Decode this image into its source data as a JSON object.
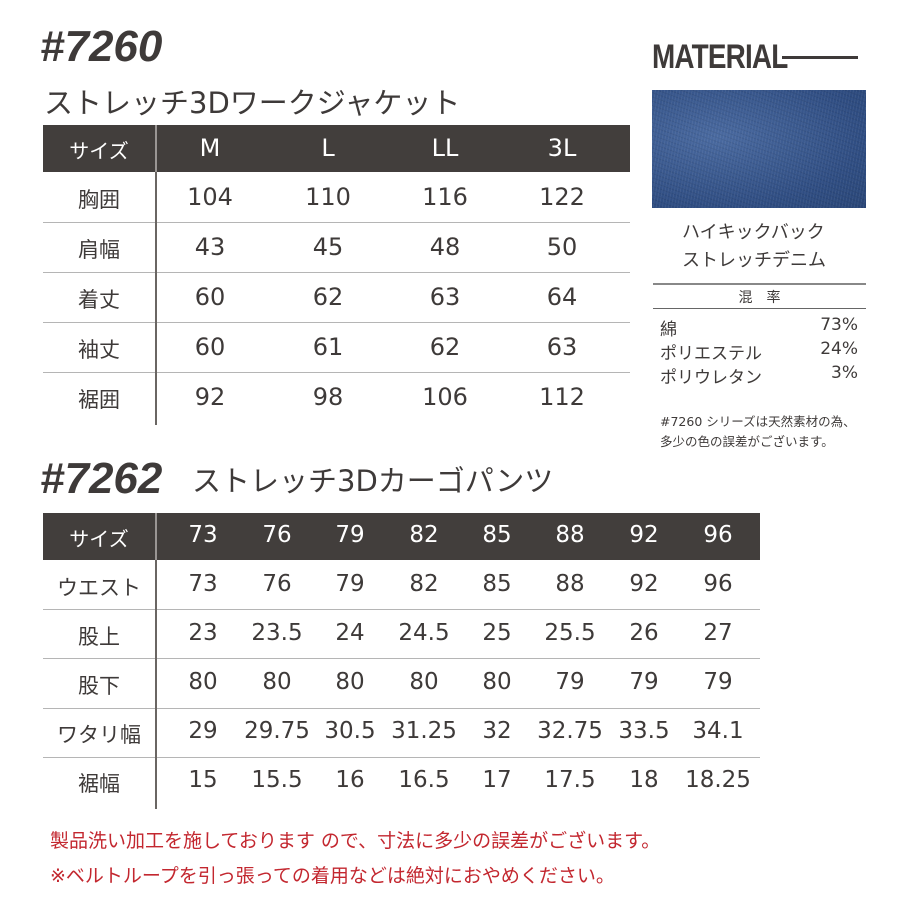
{
  "jacket": {
    "code": "#7260",
    "name": "ストレッチ3Dワークジャケット",
    "header_label": "サイズ",
    "sizes": [
      "M",
      "L",
      "LL",
      "3L"
    ],
    "rows": [
      {
        "label": "胸囲",
        "values": [
          "104",
          "110",
          "116",
          "122"
        ]
      },
      {
        "label": "肩幅",
        "values": [
          "43",
          "45",
          "48",
          "50"
        ]
      },
      {
        "label": "着丈",
        "values": [
          "60",
          "62",
          "63",
          "64"
        ]
      },
      {
        "label": "袖丈",
        "values": [
          "60",
          "61",
          "62",
          "63"
        ]
      },
      {
        "label": "裾囲",
        "values": [
          "92",
          "98",
          "106",
          "112"
        ]
      }
    ]
  },
  "material": {
    "title": "MATERIAL",
    "fabric_line1": "ハイキックバック",
    "fabric_line2": "ストレッチデニム",
    "blend_header": "混　率",
    "blend": [
      {
        "name": "綿",
        "pct": "73%"
      },
      {
        "name": "ポリエステル",
        "pct": "24%"
      },
      {
        "name": "ポリウレタン",
        "pct": "3%"
      }
    ],
    "note_line1": "#7260 シリーズは天然素材の為、",
    "note_line2": "多少の色の誤差がございます。",
    "swatch_color": "#35538a"
  },
  "pants": {
    "code": "#7262",
    "name": "ストレッチ3Dカーゴパンツ",
    "header_label": "サイズ",
    "sizes": [
      "73",
      "76",
      "79",
      "82",
      "85",
      "88",
      "92",
      "96"
    ],
    "rows": [
      {
        "label": "ウエスト",
        "values": [
          "73",
          "76",
          "79",
          "82",
          "85",
          "88",
          "92",
          "96"
        ]
      },
      {
        "label": "股上",
        "values": [
          "23",
          "23.5",
          "24",
          "24.5",
          "25",
          "25.5",
          "26",
          "27"
        ]
      },
      {
        "label": "股下",
        "values": [
          "80",
          "80",
          "80",
          "80",
          "80",
          "79",
          "79",
          "79"
        ]
      },
      {
        "label": "ワタリ幅",
        "values": [
          "29",
          "29.75",
          "30.5",
          "31.25",
          "32",
          "32.75",
          "33.5",
          "34.1"
        ]
      },
      {
        "label": "裾幅",
        "values": [
          "15",
          "15.5",
          "16",
          "16.5",
          "17",
          "17.5",
          "18",
          "18.25"
        ]
      }
    ]
  },
  "notes": {
    "line1": "製品洗い加工を施しております ので、寸法に多少の誤差がございます。",
    "line2": "※ベルトループを引っ張っての着用などは絶対におやめください。",
    "color": "#c3272f"
  }
}
